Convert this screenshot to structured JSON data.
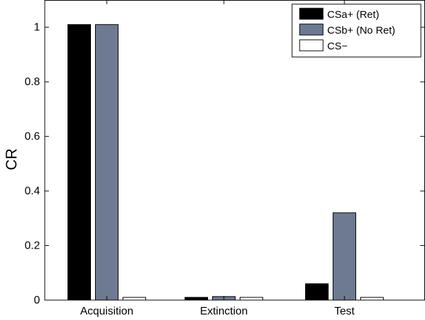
{
  "chart_data": {
    "type": "bar",
    "categories": [
      "Acquisition",
      "Extinction",
      "Test"
    ],
    "series": [
      {
        "name": "CSa+ (Ret)",
        "color": "#000000",
        "values": [
          1.01,
          0.01,
          0.06
        ]
      },
      {
        "name": "CSb+ (No Ret)",
        "color": "#6e7a91",
        "values": [
          1.01,
          0.013,
          0.32
        ]
      },
      {
        "name": "CS−",
        "color": "#ffffff",
        "values": [
          0.01,
          0.01,
          0.01
        ]
      }
    ],
    "xlabel": "",
    "ylabel": "CR",
    "ylim": [
      0,
      1.1
    ],
    "yticks": [
      "0",
      "0.2",
      "0.4",
      "0.6",
      "0.8",
      "1"
    ],
    "legend_position": "top-right",
    "grid": false
  }
}
